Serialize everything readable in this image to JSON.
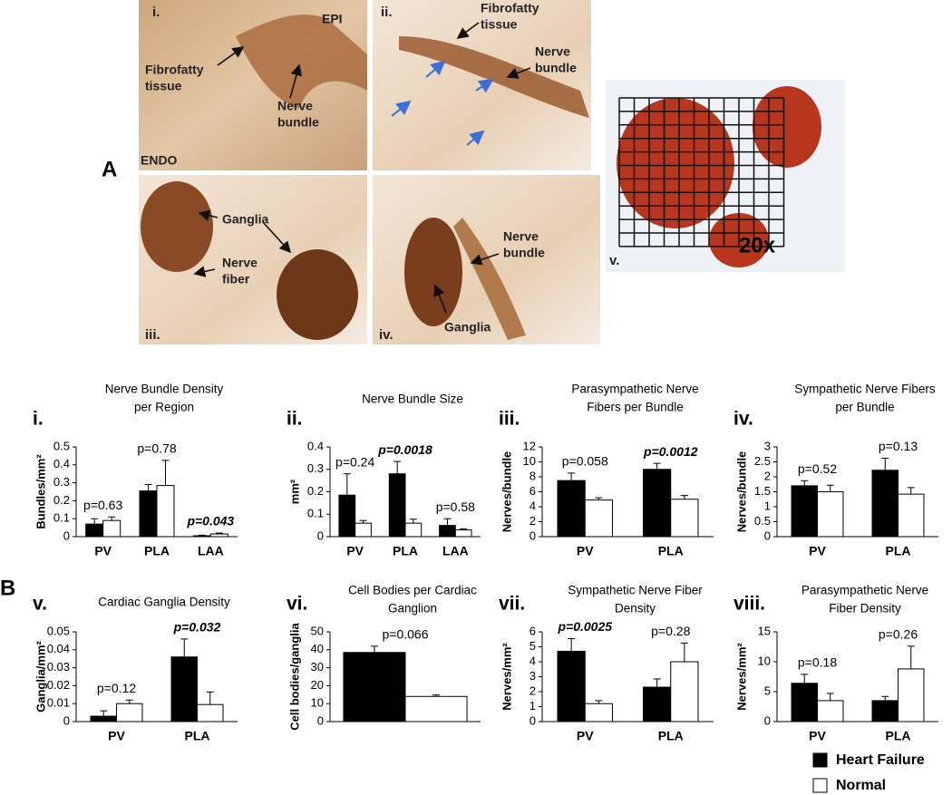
{
  "panel_a": {
    "label": "A",
    "images": [
      {
        "texts": [
          [
            "i."
          ],
          [
            "EPI"
          ],
          [
            "Fibrofatty",
            "tissue"
          ],
          [
            "Nerve",
            "bundle"
          ],
          [
            "ENDO"
          ]
        ]
      },
      {
        "texts": [
          [
            "ii."
          ],
          [
            "Fibrofatty",
            "tissue"
          ],
          [
            "Nerve",
            "bundle"
          ]
        ]
      },
      {
        "texts": [
          [
            "Ganglia"
          ],
          [
            "Nerve",
            "fiber"
          ],
          [
            "iii."
          ]
        ]
      },
      {
        "texts": [
          [
            "Nerve",
            "bundle"
          ],
          [
            "Ganglia"
          ],
          [
            "iv."
          ]
        ]
      },
      {
        "texts": [
          [
            "v."
          ],
          [
            "20x"
          ]
        ]
      }
    ]
  },
  "panel_b": {
    "label": "B"
  },
  "chart_data": [
    {
      "type": "bar",
      "label": "i.",
      "title": [
        "Nerve Bundle Density",
        "per Region"
      ],
      "y_label": "Bundles/mm²",
      "categories": [
        "PV",
        "PLA",
        "LAA"
      ],
      "series": [
        {
          "name": "Heart Failure",
          "color": "#000000",
          "values": [
            0.07,
            0.255,
            0.005
          ],
          "errors": [
            0.03,
            0.035,
            0.003
          ]
        },
        {
          "name": "Normal",
          "color": "#ffffff",
          "values": [
            0.09,
            0.285,
            0.015
          ],
          "errors": [
            0.02,
            0.14,
            0.005
          ]
        }
      ],
      "p_values": [
        "p=0.63",
        "p=0.78",
        "p=0.043"
      ],
      "significant": [
        false,
        false,
        true
      ],
      "ylim": [
        0,
        0.5
      ],
      "yticks": [
        0,
        0.1,
        0.2,
        0.3,
        0.4,
        0.5
      ]
    },
    {
      "type": "bar",
      "label": "ii.",
      "title": [
        "Nerve Bundle Size"
      ],
      "y_label": "mm²",
      "categories": [
        "PV",
        "PLA",
        "LAA"
      ],
      "series": [
        {
          "name": "Heart Failure",
          "color": "#000000",
          "values": [
            0.185,
            0.28,
            0.05
          ],
          "errors": [
            0.095,
            0.055,
            0.03
          ]
        },
        {
          "name": "Normal",
          "color": "#ffffff",
          "values": [
            0.06,
            0.06,
            0.03
          ],
          "errors": [
            0.012,
            0.018,
            0.005
          ]
        }
      ],
      "p_values": [
        "p=0.24",
        "p=0.0018",
        "p=0.58"
      ],
      "significant": [
        false,
        true,
        false
      ],
      "ylim": [
        0,
        0.4
      ],
      "yticks": [
        0,
        0.1,
        0.2,
        0.3,
        0.4
      ]
    },
    {
      "type": "bar",
      "label": "iii.",
      "title": [
        "Parasympathetic Nerve",
        "Fibers per Bundle"
      ],
      "y_label": "Nerves/bundle",
      "categories": [
        "PV",
        "PLA"
      ],
      "series": [
        {
          "name": "Heart Failure",
          "color": "#000000",
          "values": [
            7.5,
            9.0
          ],
          "errors": [
            1.0,
            0.8
          ]
        },
        {
          "name": "Normal",
          "color": "#ffffff",
          "values": [
            4.9,
            5.0
          ],
          "errors": [
            0.3,
            0.5
          ]
        }
      ],
      "p_values": [
        "p=0.058",
        "p=0.0012"
      ],
      "significant": [
        false,
        true
      ],
      "ylim": [
        0,
        12
      ],
      "yticks": [
        0,
        2,
        4,
        6,
        8,
        10,
        12
      ]
    },
    {
      "type": "bar",
      "label": "iv.",
      "title": [
        "Sympathetic Nerve Fibers",
        "per Bundle"
      ],
      "y_label": "Nerves/bundle",
      "categories": [
        "PV",
        "PLA"
      ],
      "series": [
        {
          "name": "Heart Failure",
          "color": "#000000",
          "values": [
            1.7,
            2.22
          ],
          "errors": [
            0.17,
            0.4
          ]
        },
        {
          "name": "Normal",
          "color": "#ffffff",
          "values": [
            1.5,
            1.42
          ],
          "errors": [
            0.22,
            0.22
          ]
        }
      ],
      "p_values": [
        "p=0.52",
        "p=0.13"
      ],
      "significant": [
        false,
        false
      ],
      "ylim": [
        0,
        3
      ],
      "yticks": [
        0,
        0.5,
        1,
        1.5,
        2,
        2.5,
        3
      ]
    },
    {
      "type": "bar",
      "label": "v.",
      "title": [
        "Cardiac Ganglia Density"
      ],
      "y_label": "Ganglia/mm²",
      "categories": [
        "PV",
        "PLA"
      ],
      "series": [
        {
          "name": "Heart Failure",
          "color": "#000000",
          "values": [
            0.003,
            0.036
          ],
          "errors": [
            0.003,
            0.01
          ]
        },
        {
          "name": "Normal",
          "color": "#ffffff",
          "values": [
            0.01,
            0.0095
          ],
          "errors": [
            0.002,
            0.007
          ]
        }
      ],
      "p_values": [
        "p=0.12",
        "p=0.032"
      ],
      "significant": [
        false,
        true
      ],
      "ylim": [
        0,
        0.05
      ],
      "yticks": [
        0,
        0.01,
        0.02,
        0.03,
        0.04,
        0.05
      ]
    },
    {
      "type": "bar",
      "label": "vi.",
      "title": [
        "Cell Bodies per Cardiac",
        "Ganglion"
      ],
      "y_label": "Cell bodies/ganglia",
      "categories": [
        null
      ],
      "series": [
        {
          "name": "Heart Failure",
          "color": "#000000",
          "values": [
            38.5
          ],
          "errors": [
            3.5
          ]
        },
        {
          "name": "Normal",
          "color": "#ffffff",
          "values": [
            14
          ],
          "errors": [
            0.8
          ]
        }
      ],
      "p_values": [
        "p=0.066"
      ],
      "significant": [
        false
      ],
      "ylim": [
        0,
        50
      ],
      "yticks": [
        0,
        10,
        20,
        30,
        40,
        50
      ]
    },
    {
      "type": "bar",
      "label": "vii.",
      "title": [
        "Sympathetic Nerve Fiber",
        "Density"
      ],
      "y_label": "Nerves/mm²",
      "categories": [
        "PV",
        "PLA"
      ],
      "series": [
        {
          "name": "Heart Failure",
          "color": "#000000",
          "values": [
            4.7,
            2.3
          ],
          "errors": [
            0.85,
            0.55
          ]
        },
        {
          "name": "Normal",
          "color": "#ffffff",
          "values": [
            1.2,
            4.0
          ],
          "errors": [
            0.2,
            1.25
          ]
        }
      ],
      "p_values": [
        "p=0.0025",
        "p=0.28"
      ],
      "significant": [
        true,
        false
      ],
      "ylim": [
        0,
        6
      ],
      "yticks": [
        0,
        1,
        2,
        3,
        4,
        5,
        6
      ]
    },
    {
      "type": "bar",
      "label": "viii.",
      "title": [
        "Parasympathetic Nerve",
        "Fiber Density"
      ],
      "y_label": "Nerves/mm²",
      "categories": [
        "PV",
        "PLA"
      ],
      "series": [
        {
          "name": "Heart Failure",
          "color": "#000000",
          "values": [
            6.4,
            3.5
          ],
          "errors": [
            1.5,
            0.7
          ]
        },
        {
          "name": "Normal",
          "color": "#ffffff",
          "values": [
            3.5,
            8.8
          ],
          "errors": [
            1.2,
            3.8
          ]
        }
      ],
      "p_values": [
        "p=0.18",
        "p=0.26"
      ],
      "significant": [
        false,
        false
      ],
      "ylim": [
        0,
        15
      ],
      "yticks": [
        0,
        5,
        10,
        15
      ]
    }
  ]
}
